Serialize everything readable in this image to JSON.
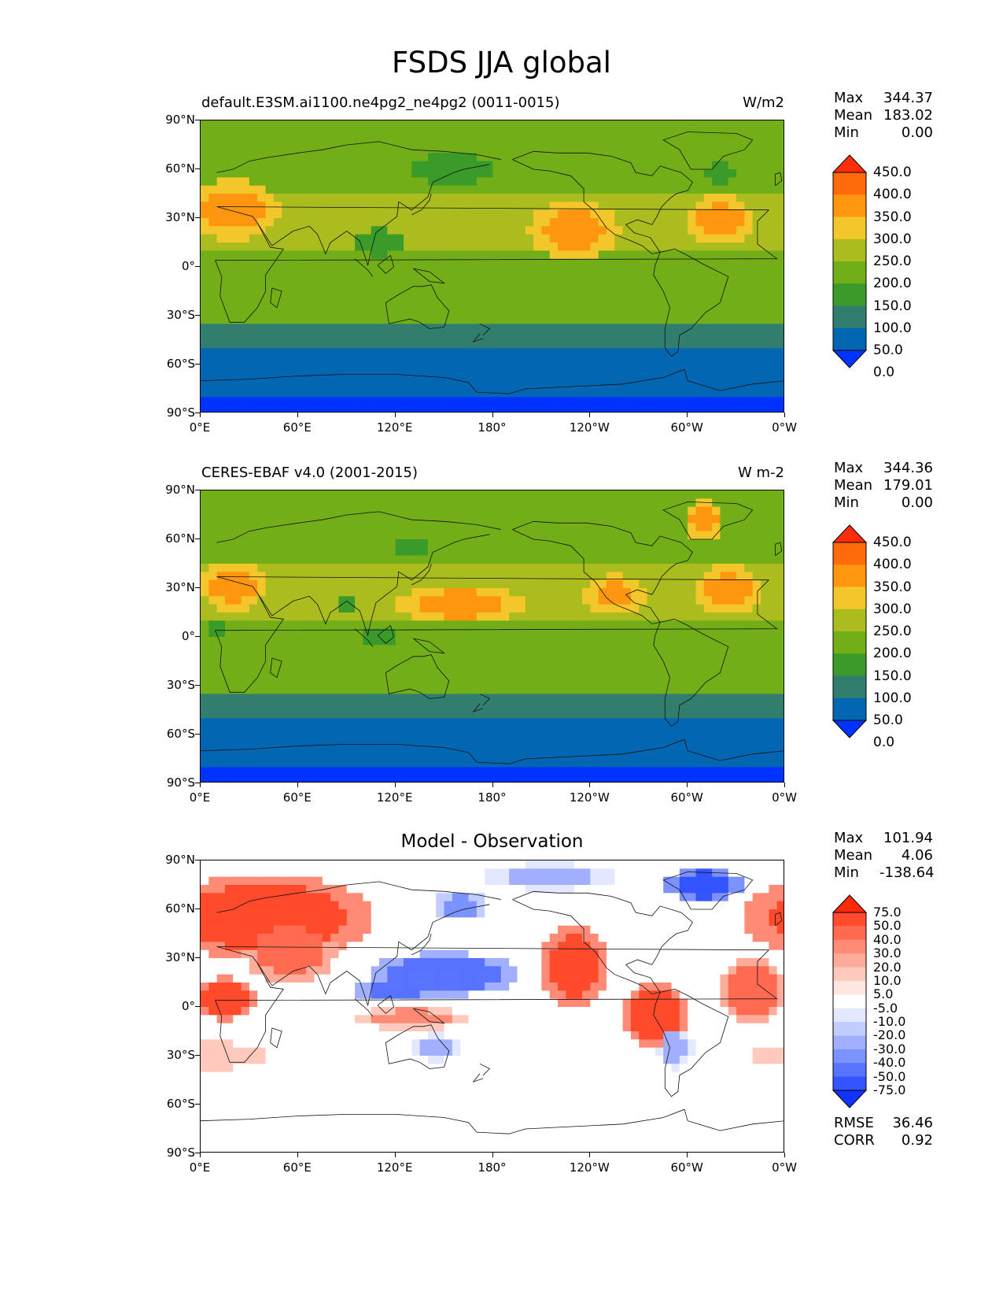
{
  "figure_title": "FSDS JJA global",
  "chart_data": [
    {
      "type": "heatmap",
      "panel": "test",
      "title": "default.E3SM.ai1100.ne4pg2_ne4pg2 (0011-0015)",
      "units": "W/m2",
      "stats": [
        {
          "label": "Max",
          "value": "344.37"
        },
        {
          "label": "Mean",
          "value": "183.02"
        },
        {
          "label": "Min",
          "value": "0.00"
        }
      ],
      "colorbar": {
        "levels": [
          "450.0",
          "400.0",
          "350.0",
          "300.0",
          "250.0",
          "200.0",
          "150.0",
          "100.0",
          "50.0",
          "0.0"
        ],
        "colors": [
          "#ff2d0a",
          "#ff6a0a",
          "#ff960f",
          "#f3c62a",
          "#abbc1f",
          "#72ae17",
          "#3a9a2a",
          "#317e6e",
          "#0366b2",
          "#0033ff"
        ]
      },
      "xticks": [
        "0°E",
        "60°E",
        "120°E",
        "180°",
        "120°W",
        "60°W",
        "0°W"
      ],
      "yticks": [
        "90°N",
        "60°N",
        "30°N",
        "0°",
        "30°S",
        "60°S",
        "90°S"
      ]
    },
    {
      "type": "heatmap",
      "panel": "reference",
      "title": "CERES-EBAF v4.0 (2001-2015)",
      "units": "W m-2",
      "stats": [
        {
          "label": "Max",
          "value": "344.36"
        },
        {
          "label": "Mean",
          "value": "179.01"
        },
        {
          "label": "Min",
          "value": "0.00"
        }
      ],
      "colorbar": {
        "levels": [
          "450.0",
          "400.0",
          "350.0",
          "300.0",
          "250.0",
          "200.0",
          "150.0",
          "100.0",
          "50.0",
          "0.0"
        ],
        "colors": [
          "#ff2d0a",
          "#ff6a0a",
          "#ff960f",
          "#f3c62a",
          "#abbc1f",
          "#72ae17",
          "#3a9a2a",
          "#317e6e",
          "#0366b2",
          "#0033ff"
        ]
      },
      "xticks": [
        "0°E",
        "60°E",
        "120°E",
        "180°",
        "120°W",
        "60°W",
        "0°W"
      ],
      "yticks": [
        "90°N",
        "60°N",
        "30°N",
        "0°",
        "30°S",
        "60°S",
        "90°S"
      ]
    },
    {
      "type": "heatmap",
      "panel": "difference",
      "title": "Model - Observation",
      "units": "",
      "stats": [
        {
          "label": "Max",
          "value": "101.94"
        },
        {
          "label": "Mean",
          "value": "4.06"
        },
        {
          "label": "Min",
          "value": "-138.64"
        }
      ],
      "metrics": [
        {
          "label": "RMSE",
          "value": "36.46"
        },
        {
          "label": "CORR",
          "value": "0.92"
        }
      ],
      "colorbar": {
        "levels": [
          "75.0",
          "50.0",
          "40.0",
          "30.0",
          "20.0",
          "10.0",
          "5.0",
          "-5.0",
          "-10.0",
          "-20.0",
          "-30.0",
          "-40.0",
          "-50.0",
          "-75.0"
        ],
        "colors": [
          "#ff2a0a",
          "#ff4a2c",
          "#ff6a50",
          "#ff8a75",
          "#ffab9a",
          "#ffcabd",
          "#ffe6df",
          "#ffffff",
          "#e2e8ff",
          "#c1ccff",
          "#a0b0ff",
          "#7c92ff",
          "#5873ff",
          "#3354ff",
          "#1133ff"
        ]
      },
      "xticks": [
        "0°E",
        "60°E",
        "120°E",
        "180°",
        "120°W",
        "60°W",
        "0°W"
      ],
      "yticks": [
        "90°N",
        "60°N",
        "30°N",
        "0°",
        "30°S",
        "60°S",
        "90°S"
      ]
    }
  ]
}
